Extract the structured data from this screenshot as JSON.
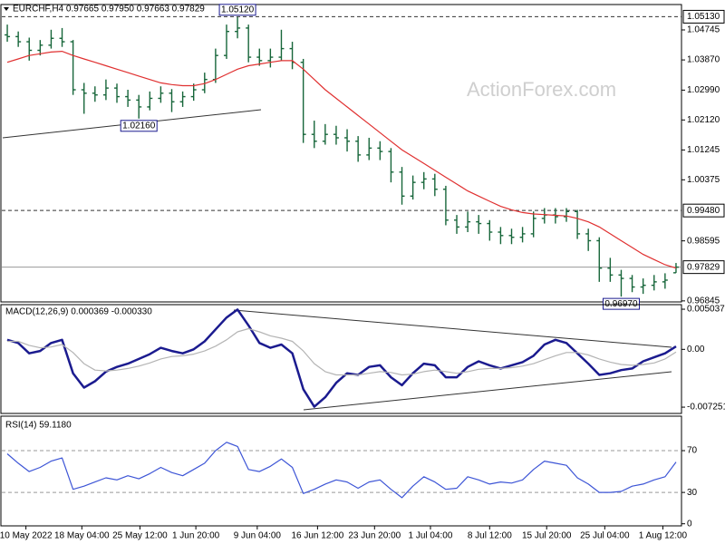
{
  "chart_data": [
    {
      "type": "ohlc",
      "title": "EURCHF,H4  0.97665 0.97950 0.97663 0.97829",
      "watermark": "ActionForex.com",
      "color": "#17663a",
      "open": [
        1.046,
        1.0455,
        1.044,
        1.0415,
        1.043,
        1.045,
        1.044,
        1.03,
        1.029,
        1.0285,
        1.0305,
        1.028,
        1.027,
        1.025,
        1.0275,
        1.029,
        1.0265,
        1.028,
        1.03,
        1.033,
        1.04,
        1.047,
        1.048,
        1.0395,
        1.0385,
        1.0395,
        1.042,
        1.038,
        1.017,
        1.015,
        1.017,
        1.016,
        1.015,
        1.011,
        1.013,
        1.012,
        1.006,
        0.999,
        1.003,
        1.004,
        1.001,
        0.992,
        0.99,
        0.9915,
        0.991,
        0.9885,
        0.9875,
        0.987,
        0.988,
        0.9925,
        0.9935,
        0.993,
        0.9945,
        0.988,
        0.986,
        0.978,
        0.976,
        0.975,
        0.9725,
        0.973,
        0.974,
        0.97665
      ],
      "high": [
        1.049,
        1.047,
        1.0452,
        1.0445,
        1.0475,
        1.048,
        1.0445,
        1.032,
        1.031,
        1.033,
        1.0318,
        1.03,
        1.0285,
        1.0295,
        1.031,
        1.0302,
        1.0295,
        1.0318,
        1.035,
        1.042,
        1.049,
        1.0512,
        1.049,
        1.042,
        1.042,
        1.0475,
        1.044,
        1.039,
        1.021,
        1.02,
        1.0195,
        1.0185,
        1.0165,
        1.016,
        1.015,
        1.013,
        1.0075,
        1.005,
        1.006,
        1.0055,
        1.002,
        0.9935,
        0.9945,
        0.9935,
        0.992,
        0.99,
        0.9895,
        0.99,
        0.9945,
        0.9955,
        0.9955,
        0.9955,
        0.995,
        0.9895,
        0.987,
        0.981,
        0.9775,
        0.976,
        0.975,
        0.976,
        0.9765,
        0.9795
      ],
      "low": [
        1.044,
        1.0425,
        1.0385,
        1.04,
        1.042,
        1.0425,
        1.0285,
        1.023,
        1.0265,
        1.027,
        1.0262,
        1.025,
        1.0216,
        1.024,
        1.0262,
        1.0235,
        1.025,
        1.0268,
        1.029,
        1.032,
        1.039,
        1.045,
        1.038,
        1.037,
        1.0365,
        1.0385,
        1.036,
        1.0145,
        1.013,
        1.014,
        1.014,
        1.012,
        1.009,
        1.0095,
        1.0095,
        1.003,
        0.9965,
        0.998,
        1.001,
        0.999,
        0.9905,
        0.988,
        0.9885,
        0.988,
        0.986,
        0.985,
        0.985,
        0.9855,
        0.987,
        0.991,
        0.991,
        0.9915,
        0.9865,
        0.983,
        0.974,
        0.974,
        0.9697,
        0.971,
        0.9705,
        0.9715,
        0.972,
        0.97663
      ],
      "close": [
        1.0455,
        1.044,
        1.0415,
        1.043,
        1.045,
        1.044,
        1.03,
        1.029,
        1.0285,
        1.0305,
        1.028,
        1.027,
        1.025,
        1.0275,
        1.029,
        1.0265,
        1.028,
        1.03,
        1.033,
        1.04,
        1.047,
        1.048,
        1.0395,
        1.0385,
        1.0395,
        1.042,
        1.038,
        1.017,
        1.015,
        1.017,
        1.016,
        1.015,
        1.011,
        1.013,
        1.012,
        1.006,
        0.999,
        1.003,
        1.004,
        1.001,
        0.992,
        0.99,
        0.9915,
        0.991,
        0.9885,
        0.9875,
        0.987,
        0.988,
        0.9925,
        0.9935,
        0.993,
        0.9945,
        0.988,
        0.986,
        0.978,
        0.976,
        0.975,
        0.9725,
        0.973,
        0.974,
        0.9745,
        0.97829
      ],
      "ma_color": "#e03030",
      "ma_values": [
        1.038,
        1.039,
        1.04,
        1.0405,
        1.041,
        1.0412,
        1.04,
        1.039,
        1.038,
        1.037,
        1.036,
        1.035,
        1.034,
        1.033,
        1.032,
        1.0315,
        1.0312,
        1.0312,
        1.0318,
        1.033,
        1.0345,
        1.036,
        1.037,
        1.0375,
        1.038,
        1.0385,
        1.0385,
        1.036,
        1.033,
        1.03,
        1.0275,
        1.025,
        1.0225,
        1.02,
        1.0175,
        1.015,
        1.0125,
        1.0105,
        1.0085,
        1.0065,
        1.0045,
        1.0025,
        1.0005,
        0.999,
        0.9975,
        0.996,
        0.995,
        0.9942,
        0.9938,
        0.9936,
        0.9934,
        0.9932,
        0.9925,
        0.9915,
        0.99,
        0.988,
        0.986,
        0.984,
        0.982,
        0.9805,
        0.979,
        0.978
      ],
      "xlim": [
        -0.5,
        61.5
      ],
      "ylim": [
        0.96815,
        1.05485
      ],
      "yticks": [
        1.04745,
        {
          "value": 1.0387,
          "label": "1.03870"
        },
        {
          "value": 1.0299,
          "label": "1.02990"
        },
        {
          "value": 1.0212,
          "label": "1.02120"
        },
        1.01245,
        1.00375,
        0.98595,
        0.96845
      ],
      "levels": [
        {
          "value": 1.0513,
          "label": "1.05130",
          "style": "dashed"
        },
        {
          "value": 0.9948,
          "label": "0.99480",
          "style": "dashed"
        },
        {
          "value": 0.97829,
          "label": "0.97829",
          "style": "solid"
        }
      ],
      "annotations": [
        {
          "label": "1.05120",
          "value": 1.0512,
          "bar": 21,
          "position": "above"
        },
        {
          "label": "1.02160",
          "value": 1.0216,
          "bar": 12,
          "position": "below"
        },
        {
          "label": "0.96970",
          "value": 0.9697,
          "bar": 56,
          "position": "below"
        }
      ]
    },
    {
      "type": "line",
      "title": "MACD(12,26,9) 0.000369 -0.000330",
      "series": [
        {
          "color": "#1b1b8f",
          "values": [
            0.0012,
            0.0008,
            -0.0005,
            -0.0002,
            0.0008,
            0.0012,
            -0.003,
            -0.0048,
            -0.004,
            -0.0028,
            -0.0022,
            -0.0018,
            -0.0012,
            -0.0006,
            0.0002,
            -0.0002,
            -0.0005,
            0,
            0.001,
            0.0025,
            0.004,
            0.005,
            0.003,
            0.0008,
            0.0002,
            0.0006,
            -0.0005,
            -0.005,
            -0.0072,
            -0.006,
            -0.0042,
            -0.003,
            -0.0032,
            -0.0022,
            -0.002,
            -0.0035,
            -0.0045,
            -0.003,
            -0.0018,
            -0.002,
            -0.0035,
            -0.0035,
            -0.0022,
            -0.0015,
            -0.002,
            -0.0024,
            -0.002,
            -0.0016,
            -0.0008,
            0.0006,
            0.0012,
            0.0008,
            -0.0005,
            -0.0018,
            -0.0032,
            -0.003,
            -0.0026,
            -0.0024,
            -0.0015,
            -0.001,
            -0.0005,
            0.000369
          ]
        },
        {
          "color": "#b4b4b4",
          "values": [
            0.001,
            0.001,
            0.0005,
            0.0002,
            0.0003,
            0.0006,
            -0.0004,
            -0.0018,
            -0.0026,
            -0.0027,
            -0.0026,
            -0.0024,
            -0.0021,
            -0.0017,
            -0.0012,
            -0.0009,
            -0.0008,
            -0.0006,
            -0.0002,
            0.0004,
            0.0012,
            0.0022,
            0.0026,
            0.0022,
            0.0017,
            0.0014,
            0.001,
            -0.0002,
            -0.0018,
            -0.0028,
            -0.0032,
            -0.0032,
            -0.0032,
            -0.003,
            -0.0028,
            -0.0029,
            -0.0032,
            -0.0031,
            -0.0028,
            -0.0026,
            -0.0028,
            -0.003,
            -0.0028,
            -0.0025,
            -0.0024,
            -0.0024,
            -0.0023,
            -0.0021,
            -0.0018,
            -0.0013,
            -0.0008,
            -0.0004,
            -0.0004,
            -0.0007,
            -0.0012,
            -0.0016,
            -0.0019,
            -0.002,
            -0.0019,
            -0.0017,
            -0.0012,
            -0.00033
          ]
        }
      ],
      "xlim": [
        -0.5,
        61.5
      ],
      "ylim": [
        -0.00804,
        0.00561
      ],
      "yticks": [
        0.005037,
        {
          "value": 0,
          "label": "0.00"
        },
        -0.007251
      ]
    },
    {
      "type": "line",
      "title": "RSI(14) 59.1180",
      "series": [
        {
          "color": "#3d55d6",
          "values": [
            67,
            58,
            50,
            54,
            60,
            63,
            33,
            36,
            40,
            44,
            42,
            46,
            43,
            48,
            54,
            49,
            46,
            52,
            58,
            70,
            78,
            74,
            52,
            50,
            55,
            62,
            54,
            29,
            33,
            38,
            42,
            40,
            34,
            40,
            42,
            33,
            25,
            36,
            45,
            40,
            33,
            34,
            45,
            42,
            38,
            40,
            39,
            42,
            52,
            60,
            58,
            56,
            44,
            38,
            30,
            30,
            31,
            36,
            38,
            42,
            45,
            59.118
          ]
        }
      ],
      "xlim": [
        -0.5,
        61.5
      ],
      "ylim": [
        -2,
        103
      ],
      "yticks": [
        0,
        30,
        70
      ],
      "levels": [
        30,
        70
      ],
      "xticks": [
        {
          "value": 1.7,
          "label": "10 May 2022"
        },
        {
          "value": 6.8,
          "label": "18 May 04:00"
        },
        {
          "value": 12.1,
          "label": "25 May 12:00"
        },
        {
          "value": 17.2,
          "label": "1 Jun 20:00"
        },
        {
          "value": 22.8,
          "label": "9 Jun 04:00"
        },
        {
          "value": 28.3,
          "label": "16 Jun 12:00"
        },
        {
          "value": 33.5,
          "label": "23 Jun 20:00"
        },
        {
          "value": 38.6,
          "label": "1 Jul 04:00"
        },
        {
          "value": 44,
          "label": "8 Jul 12:00"
        },
        {
          "value": 49.2,
          "label": "15 Jul 20:00"
        },
        {
          "value": 54.5,
          "label": "25 Jul 04:00"
        },
        {
          "value": 59.8,
          "label": "1 Aug 12:00"
        }
      ]
    }
  ]
}
